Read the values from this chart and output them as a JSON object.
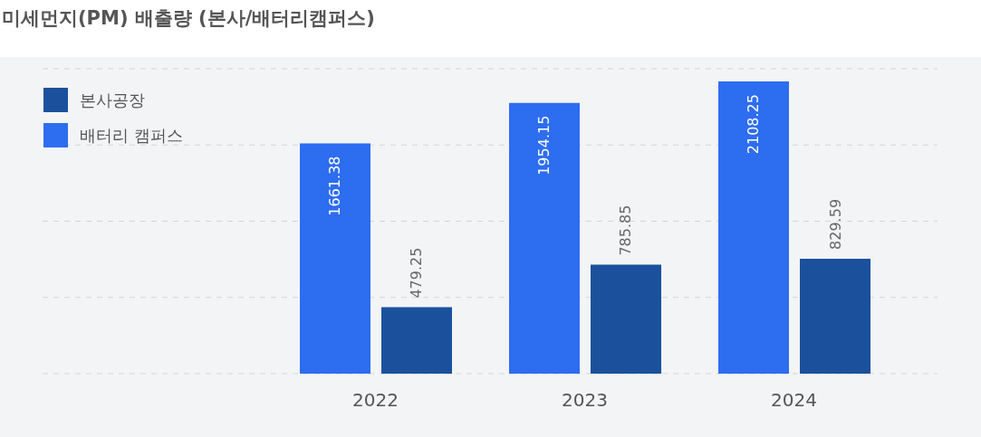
{
  "chart_data": {
    "type": "bar",
    "title": "미세먼지(PM) 배출량 (본사/배터리캠퍼스)",
    "categories": [
      "2022",
      "2023",
      "2024"
    ],
    "series": [
      {
        "name": "배터리 캠퍼스",
        "color": "#2d6df0",
        "values": [
          1661.38,
          1954.15,
          2108.25
        ]
      },
      {
        "name": "본사공장",
        "color": "#1b519c",
        "values": [
          479.25,
          785.85,
          829.59
        ]
      }
    ],
    "grid": "y",
    "legend": "top left",
    "tick_labels": "x",
    "data_labels": true
  }
}
